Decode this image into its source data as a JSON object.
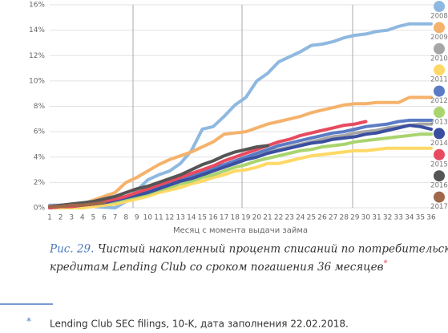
{
  "chart_data": {
    "type": "line",
    "x_label": "Месяц с момента выдачи займа",
    "categories": [
      "1",
      "2",
      "3",
      "4",
      "5",
      "6",
      "7",
      "8",
      "9",
      "10",
      "11",
      "12",
      "13",
      "14",
      "15",
      "16",
      "17",
      "18",
      "19",
      "20",
      "21",
      "22",
      "23",
      "24",
      "25",
      "26",
      "27",
      "28",
      "29",
      "30",
      "31",
      "32",
      "33",
      "34",
      "35",
      "36"
    ],
    "ylim": [
      0,
      16
    ],
    "yticks": [
      {
        "value": 0,
        "label": "0%"
      },
      {
        "value": 2,
        "label": "2%"
      },
      {
        "value": 4,
        "label": "4%"
      },
      {
        "value": 6,
        "label": "6%"
      },
      {
        "value": 8,
        "label": "8%"
      },
      {
        "value": 10,
        "label": "10%"
      },
      {
        "value": 12,
        "label": "12%"
      },
      {
        "value": 14,
        "label": "14%"
      },
      {
        "value": 16,
        "label": "16%"
      }
    ],
    "grid": true,
    "legend": "right",
    "series": [
      {
        "name": "2008",
        "color": "#8fb8e0",
        "values": [
          0.2,
          0.2,
          0.2,
          0.1,
          0.1,
          0.05,
          0,
          0.5,
          1.4,
          2.2,
          2.6,
          2.9,
          3.5,
          4.5,
          6.2,
          6.4,
          7.2,
          8.1,
          8.7,
          10,
          10.6,
          11.5,
          11.9,
          12.3,
          12.8,
          12.9,
          13.1,
          13.4,
          13.6,
          13.7,
          13.9,
          14,
          14.3,
          14.5,
          14.5,
          14.5
        ]
      },
      {
        "name": "2009",
        "color": "#f5b26b",
        "values": [
          0.1,
          0.1,
          0.2,
          0.3,
          0.6,
          0.9,
          1.2,
          2,
          2.4,
          2.9,
          3.4,
          3.8,
          4.1,
          4.4,
          4.8,
          5.2,
          5.8,
          5.9,
          6,
          6.3,
          6.6,
          6.8,
          7,
          7.2,
          7.5,
          7.7,
          7.9,
          8.1,
          8.2,
          8.2,
          8.3,
          8.3,
          8.3,
          8.7,
          8.7,
          8.7
        ]
      },
      {
        "name": "2010",
        "color": "#a6a6a6",
        "values": [
          0.1,
          0.1,
          0.2,
          0.2,
          0.3,
          0.4,
          0.6,
          0.8,
          1,
          1.3,
          1.5,
          1.8,
          2.1,
          2.4,
          2.7,
          3,
          3.3,
          3.5,
          3.8,
          4.1,
          4.4,
          4.6,
          4.8,
          5,
          5.2,
          5.4,
          5.6,
          5.7,
          5.9,
          6,
          6.1,
          6.3,
          6.4,
          6.5,
          6.6,
          6.6
        ]
      },
      {
        "name": "2011",
        "color": "#ffd966",
        "values": [
          0,
          0,
          0,
          0,
          0.1,
          0.2,
          0.3,
          0.5,
          0.7,
          0.9,
          1.2,
          1.4,
          1.6,
          1.9,
          2.1,
          2.4,
          2.6,
          2.9,
          3,
          3.2,
          3.5,
          3.5,
          3.7,
          3.9,
          4.1,
          4.2,
          4.3,
          4.4,
          4.5,
          4.5,
          4.6,
          4.7,
          4.7,
          4.7,
          4.7,
          4.7
        ]
      },
      {
        "name": "2012",
        "color": "#5b7bc4",
        "values": [
          0.1,
          0.2,
          0.2,
          0.3,
          0.4,
          0.5,
          0.7,
          0.9,
          1.1,
          1.4,
          1.6,
          1.9,
          2.2,
          2.5,
          2.8,
          3.1,
          3.4,
          3.7,
          4,
          4.3,
          4.6,
          4.9,
          5.1,
          5.3,
          5.5,
          5.7,
          5.9,
          6,
          6.2,
          6.4,
          6.5,
          6.6,
          6.8,
          6.9,
          6.9,
          6.9
        ]
      },
      {
        "name": "2013",
        "color": "#a9d46e",
        "values": [
          0,
          0.1,
          0.1,
          0.2,
          0.3,
          0.4,
          0.5,
          0.7,
          0.9,
          1.1,
          1.4,
          1.6,
          1.9,
          2.1,
          2.4,
          2.6,
          2.9,
          3.2,
          3.4,
          3.7,
          3.9,
          4.1,
          4.3,
          4.5,
          4.6,
          4.8,
          4.9,
          5,
          5.2,
          5.3,
          5.4,
          5.5,
          5.6,
          5.7,
          5.8,
          5.8
        ]
      },
      {
        "name": "2014",
        "color": "#3a4fa0",
        "values": [
          0,
          0.1,
          0.1,
          0.2,
          0.3,
          0.4,
          0.6,
          0.8,
          1,
          1.2,
          1.5,
          1.8,
          2.1,
          2.3,
          2.6,
          2.9,
          3.2,
          3.5,
          3.8,
          4,
          4.3,
          4.5,
          4.7,
          4.9,
          5.1,
          5.2,
          5.4,
          5.5,
          5.6,
          5.8,
          5.9,
          6.1,
          6.3,
          6.5,
          6.4,
          6.2
        ]
      },
      {
        "name": "2015",
        "color": "#e84a5f",
        "values": [
          0,
          0.1,
          0.1,
          0.2,
          0.3,
          0.5,
          0.7,
          0.9,
          1.2,
          1.5,
          1.8,
          2.1,
          2.4,
          2.7,
          3,
          3.3,
          3.7,
          4,
          4.3,
          4.6,
          4.9,
          5.2,
          5.4,
          5.7,
          5.9,
          6.1,
          6.3,
          6.5,
          6.6,
          6.8,
          null,
          null,
          null,
          null,
          null,
          null
        ]
      },
      {
        "name": "2016",
        "color": "#555555",
        "values": [
          0.1,
          0.2,
          0.3,
          0.4,
          0.5,
          0.7,
          0.9,
          1.2,
          1.5,
          1.7,
          2,
          2.3,
          2.6,
          3,
          3.4,
          3.7,
          4.1,
          4.4,
          4.6,
          4.8,
          4.9,
          null,
          null,
          null,
          null,
          null,
          null,
          null,
          null,
          null,
          null,
          null,
          null,
          null,
          null,
          null
        ]
      },
      {
        "name": "2017",
        "color": "#a0674a",
        "values": [
          0.1,
          0.1,
          0.2,
          0.2,
          0.3,
          0.4,
          null,
          null,
          null,
          null,
          null,
          null,
          null,
          null,
          null,
          null,
          null,
          null,
          null,
          null,
          null,
          null,
          null,
          null,
          null,
          null,
          null,
          null,
          null,
          null,
          null,
          null,
          null,
          null,
          null,
          null
        ]
      }
    ]
  },
  "caption": {
    "number": "Рис. 29.",
    "lines": [
      "Чистый накопленный процент списаний по потребительским",
      "кредитам Lending Club со сроком погашения 36 месяцев"
    ],
    "mark": "*"
  },
  "footnote": {
    "mark": "*",
    "text": "Lending Club SEC filings, 10-K, дата заполнения 22.02.2018."
  }
}
